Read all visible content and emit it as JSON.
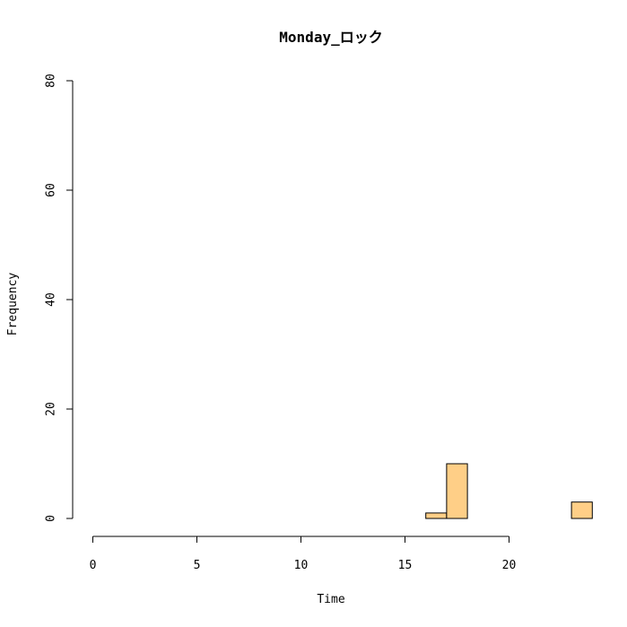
{
  "chart_data": {
    "type": "bar",
    "title": "Monday_ロック",
    "xlabel": "Time",
    "ylabel": "Frequency",
    "xlim": [
      0,
      24
    ],
    "ylim": [
      0,
      80
    ],
    "x_ticks": [
      "0",
      "5",
      "10",
      "15",
      "20"
    ],
    "y_ticks": [
      "0",
      "20",
      "40",
      "60",
      "80"
    ],
    "bin_width": 1,
    "bins": [
      {
        "start": 0,
        "end": 1,
        "count": 0
      },
      {
        "start": 1,
        "end": 2,
        "count": 0
      },
      {
        "start": 2,
        "end": 3,
        "count": 0
      },
      {
        "start": 3,
        "end": 4,
        "count": 0
      },
      {
        "start": 4,
        "end": 5,
        "count": 0
      },
      {
        "start": 5,
        "end": 6,
        "count": 0
      },
      {
        "start": 6,
        "end": 7,
        "count": 0
      },
      {
        "start": 7,
        "end": 8,
        "count": 0
      },
      {
        "start": 8,
        "end": 9,
        "count": 0
      },
      {
        "start": 9,
        "end": 10,
        "count": 0
      },
      {
        "start": 10,
        "end": 11,
        "count": 0
      },
      {
        "start": 11,
        "end": 12,
        "count": 0
      },
      {
        "start": 12,
        "end": 13,
        "count": 0
      },
      {
        "start": 13,
        "end": 14,
        "count": 0
      },
      {
        "start": 14,
        "end": 15,
        "count": 0
      },
      {
        "start": 15,
        "end": 16,
        "count": 0
      },
      {
        "start": 16,
        "end": 17,
        "count": 1
      },
      {
        "start": 17,
        "end": 18,
        "count": 10
      },
      {
        "start": 18,
        "end": 19,
        "count": 0
      },
      {
        "start": 19,
        "end": 20,
        "count": 0
      },
      {
        "start": 20,
        "end": 21,
        "count": 0
      },
      {
        "start": 21,
        "end": 22,
        "count": 0
      },
      {
        "start": 22,
        "end": 23,
        "count": 0
      },
      {
        "start": 23,
        "end": 24,
        "count": 3
      }
    ],
    "bar_color": "#FFCF87",
    "border_color": "#000000",
    "grid": false,
    "legend": "none"
  }
}
